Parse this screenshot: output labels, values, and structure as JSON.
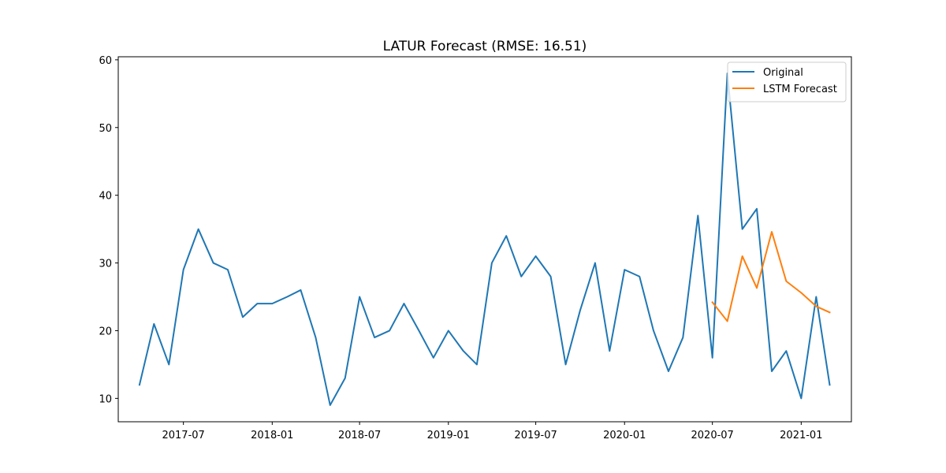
{
  "chart_data": {
    "type": "line",
    "title": "LATUR Forecast (RMSE: 16.51)",
    "xlabel": "",
    "ylabel": "",
    "x_axis": {
      "type": "date",
      "range": [
        "2017-02-16",
        "2021-04-15"
      ],
      "ticks": [
        "2017-07-01",
        "2018-01-01",
        "2018-07-01",
        "2019-01-01",
        "2019-07-01",
        "2020-01-01",
        "2020-07-01",
        "2021-01-01"
      ],
      "tick_labels": [
        "2017-07",
        "2018-01",
        "2018-07",
        "2019-01",
        "2019-07",
        "2020-01",
        "2020-07",
        "2021-01"
      ]
    },
    "y_axis": {
      "range": [
        6.55,
        60.45
      ],
      "ticks": [
        10,
        20,
        30,
        40,
        50,
        60
      ],
      "tick_labels": [
        "10",
        "20",
        "30",
        "40",
        "50",
        "60"
      ]
    },
    "grid": false,
    "legend_position": "top-right",
    "series": [
      {
        "name": "Original",
        "color": "#1f77b4",
        "x": [
          "2017-04-01",
          "2017-05-01",
          "2017-06-01",
          "2017-07-01",
          "2017-08-01",
          "2017-09-01",
          "2017-10-01",
          "2017-11-01",
          "2017-12-01",
          "2018-01-01",
          "2018-02-01",
          "2018-03-01",
          "2018-04-01",
          "2018-05-01",
          "2018-06-01",
          "2018-07-01",
          "2018-08-01",
          "2018-09-01",
          "2018-10-01",
          "2018-11-01",
          "2018-12-01",
          "2019-01-01",
          "2019-02-01",
          "2019-03-01",
          "2019-04-01",
          "2019-05-01",
          "2019-06-01",
          "2019-07-01",
          "2019-08-01",
          "2019-09-01",
          "2019-10-01",
          "2019-11-01",
          "2019-12-01",
          "2020-01-01",
          "2020-02-01",
          "2020-03-01",
          "2020-04-01",
          "2020-05-01",
          "2020-06-01",
          "2020-07-01",
          "2020-08-01",
          "2020-09-01",
          "2020-10-01",
          "2020-11-01",
          "2020-12-01",
          "2021-01-01",
          "2021-02-01",
          "2021-03-01"
        ],
        "values": [
          12,
          21,
          15,
          29,
          35,
          30,
          29,
          22,
          24,
          24,
          25,
          26,
          19,
          9,
          13,
          25,
          19,
          20,
          24,
          20,
          16,
          20,
          17,
          15,
          30,
          34,
          28,
          31,
          28,
          15,
          23,
          30,
          17,
          29,
          28,
          20,
          14,
          19,
          37,
          16,
          58,
          35,
          38,
          14,
          17,
          10,
          25,
          12
        ]
      },
      {
        "name": "LSTM Forecast",
        "color": "#ff7f0e",
        "x": [
          "2020-07-01",
          "2020-08-01",
          "2020-09-01",
          "2020-10-01",
          "2020-11-01",
          "2020-12-01",
          "2021-01-01",
          "2021-02-01",
          "2021-03-01"
        ],
        "values": [
          24.2,
          21.4,
          31.0,
          26.3,
          34.6,
          27.3,
          25.6,
          23.6,
          22.7
        ]
      }
    ]
  }
}
